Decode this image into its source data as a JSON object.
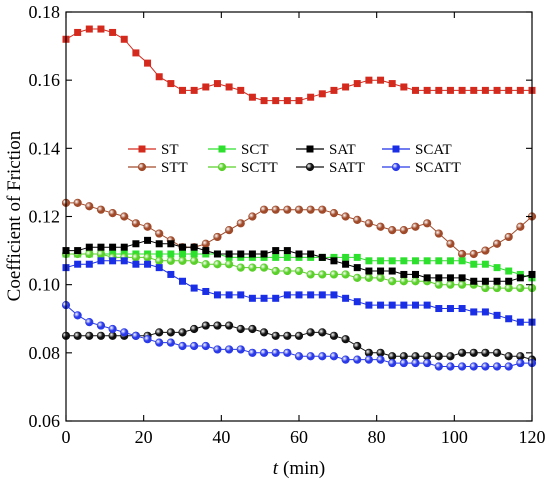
{
  "chart_data": {
    "type": "line",
    "xlabel": "t",
    "xlabel_unit": "(min)",
    "ylabel": "Coefficient of Friction",
    "xlim": [
      0,
      120
    ],
    "ylim": [
      0.06,
      0.18
    ],
    "xticks": [
      "0",
      "20",
      "40",
      "60",
      "80",
      "100",
      "120"
    ],
    "yticks": [
      "0.06",
      "0.08",
      "0.10",
      "0.12",
      "0.14",
      "0.16",
      "0.18"
    ],
    "grid": false,
    "legend_position": "center",
    "x": [
      0,
      3,
      6,
      9,
      12,
      15,
      18,
      21,
      24,
      27,
      30,
      33,
      36,
      39,
      42,
      45,
      48,
      51,
      54,
      57,
      60,
      63,
      66,
      69,
      72,
      75,
      78,
      81,
      84,
      87,
      90,
      93,
      96,
      99,
      102,
      105,
      108,
      111,
      114,
      117,
      120
    ],
    "series": [
      {
        "name": "ST",
        "color": "#d42a1e",
        "marker": "square",
        "values": [
          0.172,
          0.174,
          0.175,
          0.175,
          0.174,
          0.172,
          0.168,
          0.165,
          0.161,
          0.159,
          0.157,
          0.157,
          0.158,
          0.159,
          0.158,
          0.157,
          0.155,
          0.154,
          0.154,
          0.154,
          0.154,
          0.155,
          0.156,
          0.157,
          0.158,
          0.159,
          0.16,
          0.16,
          0.159,
          0.158,
          0.157,
          0.157,
          0.157,
          0.157,
          0.157,
          0.157,
          0.157,
          0.157,
          0.157,
          0.157,
          0.157
        ]
      },
      {
        "name": "STT",
        "color": "#a04a2a",
        "marker": "circle",
        "values": [
          0.124,
          0.124,
          0.123,
          0.122,
          0.121,
          0.12,
          0.118,
          0.117,
          0.115,
          0.113,
          0.111,
          0.111,
          0.112,
          0.114,
          0.116,
          0.118,
          0.12,
          0.122,
          0.122,
          0.122,
          0.122,
          0.122,
          0.122,
          0.121,
          0.12,
          0.119,
          0.118,
          0.117,
          0.116,
          0.116,
          0.117,
          0.118,
          0.115,
          0.112,
          0.109,
          0.109,
          0.11,
          0.112,
          0.114,
          0.117,
          0.12
        ]
      },
      {
        "name": "SCT",
        "color": "#2ee02e",
        "marker": "square",
        "values": [
          0.109,
          0.109,
          0.109,
          0.109,
          0.109,
          0.109,
          0.109,
          0.109,
          0.109,
          0.109,
          0.109,
          0.109,
          0.109,
          0.109,
          0.108,
          0.108,
          0.108,
          0.108,
          0.108,
          0.108,
          0.108,
          0.108,
          0.108,
          0.108,
          0.108,
          0.108,
          0.107,
          0.107,
          0.107,
          0.107,
          0.107,
          0.107,
          0.107,
          0.107,
          0.107,
          0.106,
          0.106,
          0.105,
          0.104,
          0.103,
          0.102
        ]
      },
      {
        "name": "SCTT",
        "color": "#5ad02a",
        "marker": "circle",
        "values": [
          0.109,
          0.109,
          0.109,
          0.109,
          0.108,
          0.108,
          0.108,
          0.108,
          0.107,
          0.107,
          0.107,
          0.107,
          0.106,
          0.106,
          0.106,
          0.105,
          0.105,
          0.105,
          0.104,
          0.104,
          0.104,
          0.103,
          0.103,
          0.103,
          0.103,
          0.102,
          0.102,
          0.102,
          0.101,
          0.101,
          0.101,
          0.101,
          0.1,
          0.1,
          0.1,
          0.1,
          0.099,
          0.099,
          0.099,
          0.099,
          0.099
        ]
      },
      {
        "name": "SAT",
        "color": "#000000",
        "marker": "square",
        "values": [
          0.11,
          0.11,
          0.111,
          0.111,
          0.111,
          0.111,
          0.112,
          0.113,
          0.112,
          0.112,
          0.111,
          0.111,
          0.11,
          0.109,
          0.109,
          0.109,
          0.109,
          0.109,
          0.11,
          0.11,
          0.109,
          0.109,
          0.108,
          0.107,
          0.106,
          0.105,
          0.104,
          0.104,
          0.104,
          0.103,
          0.103,
          0.102,
          0.102,
          0.102,
          0.102,
          0.101,
          0.101,
          0.101,
          0.101,
          0.102,
          0.103
        ]
      },
      {
        "name": "SATT",
        "color": "#111111",
        "marker": "circle",
        "values": [
          0.085,
          0.085,
          0.085,
          0.085,
          0.085,
          0.085,
          0.085,
          0.085,
          0.086,
          0.086,
          0.086,
          0.087,
          0.088,
          0.088,
          0.088,
          0.087,
          0.087,
          0.086,
          0.085,
          0.085,
          0.085,
          0.086,
          0.086,
          0.085,
          0.084,
          0.082,
          0.08,
          0.08,
          0.079,
          0.079,
          0.079,
          0.079,
          0.079,
          0.079,
          0.08,
          0.08,
          0.08,
          0.08,
          0.079,
          0.079,
          0.078
        ]
      },
      {
        "name": "SCAT",
        "color": "#1a2ee6",
        "marker": "square",
        "values": [
          0.105,
          0.106,
          0.106,
          0.107,
          0.107,
          0.107,
          0.106,
          0.106,
          0.105,
          0.103,
          0.101,
          0.099,
          0.098,
          0.097,
          0.097,
          0.097,
          0.096,
          0.096,
          0.096,
          0.097,
          0.097,
          0.097,
          0.097,
          0.097,
          0.096,
          0.095,
          0.094,
          0.094,
          0.094,
          0.094,
          0.094,
          0.094,
          0.093,
          0.093,
          0.093,
          0.092,
          0.092,
          0.091,
          0.09,
          0.089,
          0.089
        ]
      },
      {
        "name": "SCATT",
        "color": "#2a3ae8",
        "marker": "circle",
        "values": [
          0.094,
          0.091,
          0.089,
          0.088,
          0.087,
          0.086,
          0.085,
          0.084,
          0.083,
          0.083,
          0.082,
          0.082,
          0.082,
          0.081,
          0.081,
          0.081,
          0.08,
          0.08,
          0.08,
          0.08,
          0.079,
          0.079,
          0.079,
          0.079,
          0.078,
          0.078,
          0.078,
          0.078,
          0.077,
          0.077,
          0.077,
          0.077,
          0.076,
          0.076,
          0.076,
          0.076,
          0.076,
          0.076,
          0.076,
          0.077,
          0.077
        ]
      }
    ]
  }
}
